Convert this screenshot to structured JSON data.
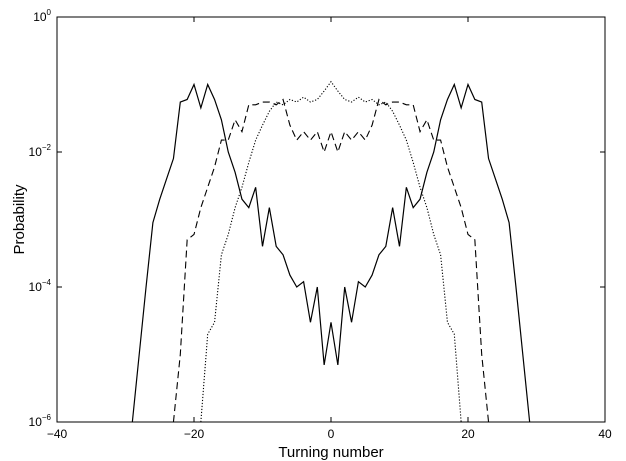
{
  "chart_data": {
    "type": "line",
    "title": "",
    "xlabel": "Turning number",
    "ylabel": "Probability",
    "xlim": [
      -40,
      40
    ],
    "ylim": [
      1e-06,
      1
    ],
    "yscale": "log",
    "grid": false,
    "legend": "none",
    "x_ticks": [
      -40,
      -20,
      0,
      20,
      40
    ],
    "x_tick_labels": [
      "−40",
      "−20",
      "0",
      "20",
      "40"
    ],
    "y_ticks": [
      1e-06,
      0.0001,
      0.01,
      1
    ],
    "y_tick_labels": [
      {
        "base": "10",
        "exp": "−6"
      },
      {
        "base": "10",
        "exp": "−4"
      },
      {
        "base": "10",
        "exp": "−2"
      },
      {
        "base": "10",
        "exp": "0"
      }
    ],
    "series": [
      {
        "style": "solid",
        "points": [
          [
            -29,
            1e-06
          ],
          [
            -28,
            1e-05
          ],
          [
            -27,
            0.0001
          ],
          [
            -26,
            0.0009
          ],
          [
            -25,
            0.002
          ],
          [
            -24,
            0.004
          ],
          [
            -23,
            0.008
          ],
          [
            -22,
            0.055
          ],
          [
            -21,
            0.06
          ],
          [
            -20,
            0.1
          ],
          [
            -19,
            0.045
          ],
          [
            -18,
            0.1
          ],
          [
            -17,
            0.06
          ],
          [
            -16,
            0.03
          ],
          [
            -15,
            0.01
          ],
          [
            -14,
            0.005
          ],
          [
            -13,
            0.002
          ],
          [
            -12,
            0.0015
          ],
          [
            -11,
            0.003
          ],
          [
            -10,
            0.0004
          ],
          [
            -9,
            0.0015
          ],
          [
            -8,
            0.0004
          ],
          [
            -7,
            0.0003
          ],
          [
            -6,
            0.00015
          ],
          [
            -5,
            0.0001
          ],
          [
            -4,
            0.00012
          ],
          [
            -3,
            3e-05
          ],
          [
            -2,
            0.0001
          ],
          [
            -1,
            7e-06
          ],
          [
            0,
            3e-05
          ],
          [
            1,
            7e-06
          ],
          [
            2,
            0.0001
          ],
          [
            3,
            3e-05
          ],
          [
            4,
            0.00012
          ],
          [
            5,
            0.0001
          ],
          [
            6,
            0.00015
          ],
          [
            7,
            0.0003
          ],
          [
            8,
            0.0004
          ],
          [
            9,
            0.0015
          ],
          [
            10,
            0.0004
          ],
          [
            11,
            0.003
          ],
          [
            12,
            0.0015
          ],
          [
            13,
            0.002
          ],
          [
            14,
            0.005
          ],
          [
            15,
            0.01
          ],
          [
            16,
            0.03
          ],
          [
            17,
            0.06
          ],
          [
            18,
            0.1
          ],
          [
            19,
            0.045
          ],
          [
            20,
            0.1
          ],
          [
            21,
            0.06
          ],
          [
            22,
            0.055
          ],
          [
            23,
            0.008
          ],
          [
            24,
            0.004
          ],
          [
            25,
            0.002
          ],
          [
            26,
            0.0009
          ],
          [
            27,
            0.0001
          ],
          [
            28,
            1e-05
          ],
          [
            29,
            1e-06
          ]
        ]
      },
      {
        "style": "dashed",
        "points": [
          [
            -23,
            1e-06
          ],
          [
            -22,
            1e-05
          ],
          [
            -21,
            0.0005
          ],
          [
            -20,
            0.0006
          ],
          [
            -19,
            0.0015
          ],
          [
            -18,
            0.003
          ],
          [
            -17,
            0.006
          ],
          [
            -16,
            0.015
          ],
          [
            -15,
            0.015
          ],
          [
            -14,
            0.03
          ],
          [
            -13,
            0.02
          ],
          [
            -12,
            0.05
          ],
          [
            -11,
            0.05
          ],
          [
            -10,
            0.055
          ],
          [
            -9,
            0.055
          ],
          [
            -8,
            0.05
          ],
          [
            -7,
            0.06
          ],
          [
            -6,
            0.025
          ],
          [
            -5,
            0.015
          ],
          [
            -4,
            0.02
          ],
          [
            -3,
            0.015
          ],
          [
            -2,
            0.02
          ],
          [
            -1,
            0.01
          ],
          [
            0,
            0.02
          ],
          [
            1,
            0.01
          ],
          [
            2,
            0.02
          ],
          [
            3,
            0.015
          ],
          [
            4,
            0.02
          ],
          [
            5,
            0.015
          ],
          [
            6,
            0.025
          ],
          [
            7,
            0.06
          ],
          [
            8,
            0.05
          ],
          [
            9,
            0.055
          ],
          [
            10,
            0.055
          ],
          [
            11,
            0.05
          ],
          [
            12,
            0.05
          ],
          [
            13,
            0.02
          ],
          [
            14,
            0.03
          ],
          [
            15,
            0.015
          ],
          [
            16,
            0.015
          ],
          [
            17,
            0.006
          ],
          [
            18,
            0.003
          ],
          [
            19,
            0.0015
          ],
          [
            20,
            0.0006
          ],
          [
            21,
            0.0005
          ],
          [
            22,
            1e-05
          ],
          [
            23,
            1e-06
          ]
        ]
      },
      {
        "style": "dotted",
        "points": [
          [
            -19,
            1e-06
          ],
          [
            -18,
            2e-05
          ],
          [
            -17,
            3e-05
          ],
          [
            -16,
            0.0003
          ],
          [
            -15,
            0.0006
          ],
          [
            -14,
            0.0015
          ],
          [
            -13,
            0.003
          ],
          [
            -12,
            0.007
          ],
          [
            -11,
            0.015
          ],
          [
            -10,
            0.025
          ],
          [
            -9,
            0.04
          ],
          [
            -8,
            0.055
          ],
          [
            -7,
            0.05
          ],
          [
            -6,
            0.06
          ],
          [
            -5,
            0.055
          ],
          [
            -4,
            0.065
          ],
          [
            -3,
            0.055
          ],
          [
            -2,
            0.06
          ],
          [
            -1,
            0.08
          ],
          [
            0,
            0.11
          ],
          [
            1,
            0.08
          ],
          [
            2,
            0.06
          ],
          [
            3,
            0.055
          ],
          [
            4,
            0.065
          ],
          [
            5,
            0.055
          ],
          [
            6,
            0.06
          ],
          [
            7,
            0.05
          ],
          [
            8,
            0.055
          ],
          [
            9,
            0.04
          ],
          [
            10,
            0.025
          ],
          [
            11,
            0.015
          ],
          [
            12,
            0.007
          ],
          [
            13,
            0.003
          ],
          [
            14,
            0.0015
          ],
          [
            15,
            0.0006
          ],
          [
            16,
            0.0003
          ],
          [
            17,
            3e-05
          ],
          [
            18,
            2e-05
          ],
          [
            19,
            1e-06
          ]
        ]
      }
    ]
  }
}
